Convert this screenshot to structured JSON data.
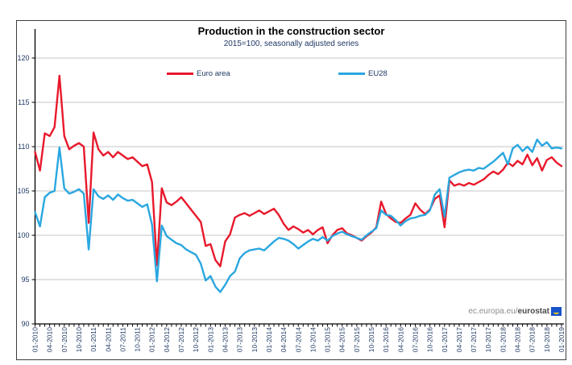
{
  "figure": {
    "title": "Production in the construction sector",
    "subtitle": "2015=100, seasonally adjusted series",
    "watermark": {
      "prefix": "ec.europa.eu/",
      "brand": "eurostat"
    }
  },
  "chart_data": {
    "type": "line",
    "title": "Production in the construction sector",
    "subtitle": "2015=100, seasonally adjusted series",
    "xlabel": "",
    "ylabel": "",
    "ylim": [
      90,
      120
    ],
    "y_ticks": [
      90,
      95,
      100,
      105,
      110,
      115,
      120
    ],
    "grid": "horizontal",
    "legend_position": "top-inside",
    "x_frequency": "monthly",
    "x_range": [
      "01-2010",
      "01-2019"
    ],
    "x_tick_labels": [
      "01-2010",
      "04-2010",
      "07-2010",
      "10-2010",
      "01-2011",
      "04-2011",
      "07-2011",
      "10-2011",
      "01-2012",
      "04-2012",
      "07-2012",
      "10-2012",
      "01-2013",
      "04-2013",
      "07-2013",
      "10-2013",
      "01-2014",
      "04-2014",
      "07-2014",
      "10-2014",
      "01-2015",
      "04-2015",
      "07-2015",
      "10-2015",
      "01-2016",
      "04-2016",
      "07-2016",
      "10-2016",
      "01-2017",
      "04-2017",
      "07-2017",
      "10-2017",
      "01-2018",
      "04-2018",
      "07-2018",
      "10-2018",
      "01-2019"
    ],
    "series": [
      {
        "name": "Euro area",
        "color": "#e8192c",
        "values": [
          109.4,
          107.3,
          111.5,
          111.2,
          112.2,
          118.0,
          111.2,
          109.7,
          110.1,
          110.4,
          110.0,
          101.4,
          111.6,
          109.7,
          109.0,
          109.4,
          108.8,
          109.4,
          109.0,
          108.6,
          108.8,
          108.3,
          107.8,
          108.0,
          106.0,
          96.6,
          105.3,
          103.7,
          103.4,
          103.8,
          104.3,
          103.6,
          102.9,
          102.2,
          101.5,
          98.8,
          99.0,
          97.2,
          96.5,
          99.3,
          100.1,
          102.0,
          102.3,
          102.5,
          102.2,
          102.5,
          102.8,
          102.4,
          102.7,
          103.0,
          102.3,
          101.3,
          100.6,
          101.0,
          100.7,
          100.3,
          100.6,
          100.1,
          100.6,
          100.9,
          99.1,
          100.0,
          100.6,
          100.8,
          100.2,
          100.0,
          99.7,
          99.4,
          99.9,
          100.3,
          100.9,
          103.8,
          102.4,
          101.9,
          101.5,
          101.4,
          101.9,
          102.3,
          103.6,
          102.9,
          102.4,
          102.9,
          104.1,
          104.5,
          100.9,
          106.2,
          105.6,
          105.8,
          105.6,
          105.9,
          105.7,
          106.0,
          106.3,
          106.8,
          107.2,
          106.9,
          107.4,
          108.2,
          107.8,
          108.4,
          108.0,
          109.1,
          107.9,
          108.7,
          107.3,
          108.5,
          108.8,
          108.2,
          107.8
        ]
      },
      {
        "name": "EU28",
        "color": "#2aa7e0",
        "values": [
          102.6,
          101.0,
          104.3,
          104.8,
          105.0,
          109.9,
          105.3,
          104.7,
          104.9,
          105.2,
          104.7,
          98.4,
          105.2,
          104.4,
          104.1,
          104.5,
          104.0,
          104.6,
          104.2,
          103.9,
          104.0,
          103.6,
          103.2,
          103.5,
          101.2,
          94.8,
          101.1,
          99.9,
          99.5,
          99.1,
          98.9,
          98.4,
          98.1,
          97.8,
          96.8,
          94.9,
          95.4,
          94.2,
          93.6,
          94.4,
          95.4,
          95.9,
          97.4,
          98.0,
          98.3,
          98.4,
          98.5,
          98.3,
          98.8,
          99.3,
          99.7,
          99.6,
          99.4,
          99.0,
          98.5,
          98.9,
          99.3,
          99.6,
          99.4,
          99.8,
          99.4,
          99.9,
          100.2,
          100.4,
          100.1,
          99.9,
          99.7,
          99.5,
          100.0,
          100.4,
          100.8,
          102.8,
          102.3,
          102.2,
          101.7,
          101.1,
          101.6,
          101.9,
          102.0,
          102.2,
          102.3,
          102.8,
          104.6,
          105.2,
          102.1,
          106.5,
          106.8,
          107.1,
          107.3,
          107.4,
          107.3,
          107.6,
          107.5,
          107.9,
          108.3,
          108.8,
          109.3,
          108.0,
          109.8,
          110.2,
          109.5,
          110.0,
          109.4,
          110.8,
          110.1,
          110.5,
          109.8,
          109.9,
          109.8
        ]
      }
    ]
  }
}
